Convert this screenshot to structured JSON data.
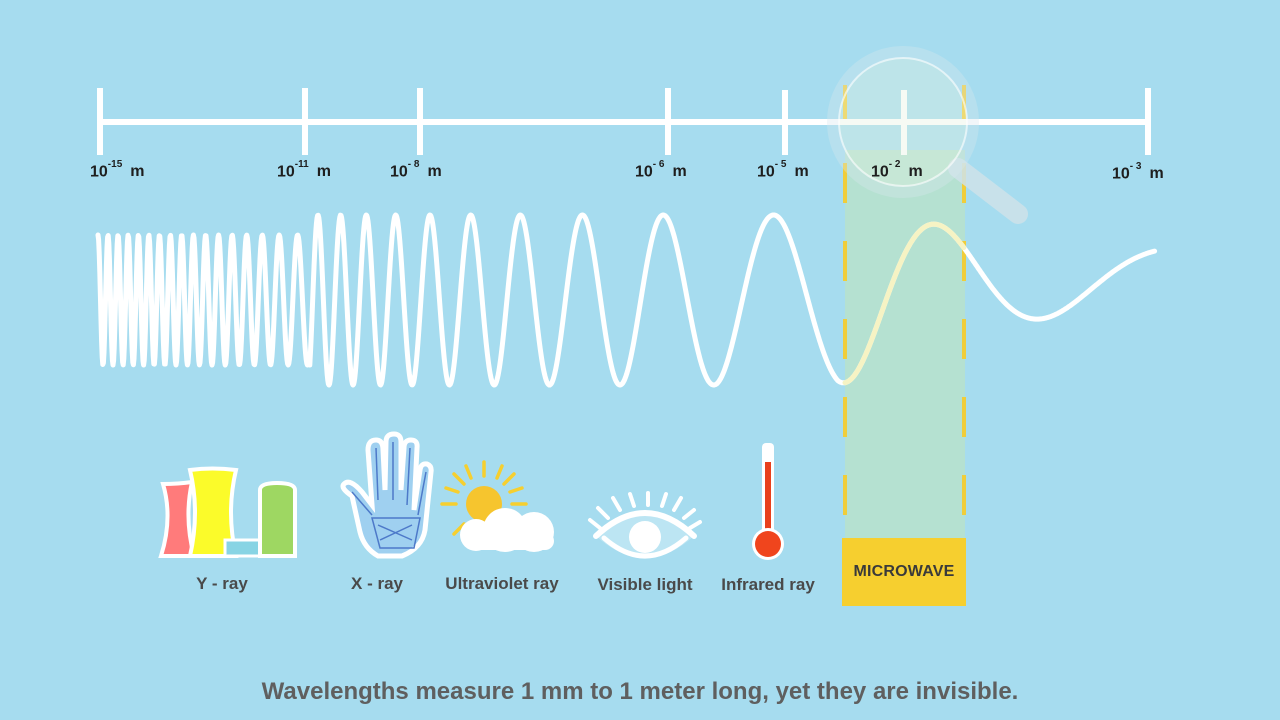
{
  "scale": {
    "ticks": [
      {
        "base": "10",
        "exp": "-15",
        "unit": "m"
      },
      {
        "base": "10",
        "exp": "-11",
        "unit": "m"
      },
      {
        "base": "10",
        "exp": "- 8",
        "unit": "m"
      },
      {
        "base": "10",
        "exp": "- 6",
        "unit": "m"
      },
      {
        "base": "10",
        "exp": "- 5",
        "unit": "m"
      },
      {
        "base": "10",
        "exp": "- 2",
        "unit": "m"
      },
      {
        "base": "10",
        "exp": "- 3",
        "unit": "m"
      }
    ]
  },
  "categories": [
    {
      "label": "Y - ray",
      "icon": "nuclear-plant-icon"
    },
    {
      "label": "X - ray",
      "icon": "xray-hand-icon"
    },
    {
      "label": "Ultraviolet ray",
      "icon": "sun-cloud-icon"
    },
    {
      "label": "Visible light",
      "icon": "eye-icon"
    },
    {
      "label": "Infrared ray",
      "icon": "thermometer-icon"
    }
  ],
  "highlight": {
    "label": "MICROWAVE",
    "icon": "magnifier-icon"
  },
  "caption": "Wavelengths measure 1 mm to 1 meter long, yet they are invisible.",
  "colors": {
    "background": "#a6dcef",
    "highlight_fill": "#b5e0cf",
    "highlight_border": "#f6cf2f",
    "wave": "#ffffff"
  }
}
